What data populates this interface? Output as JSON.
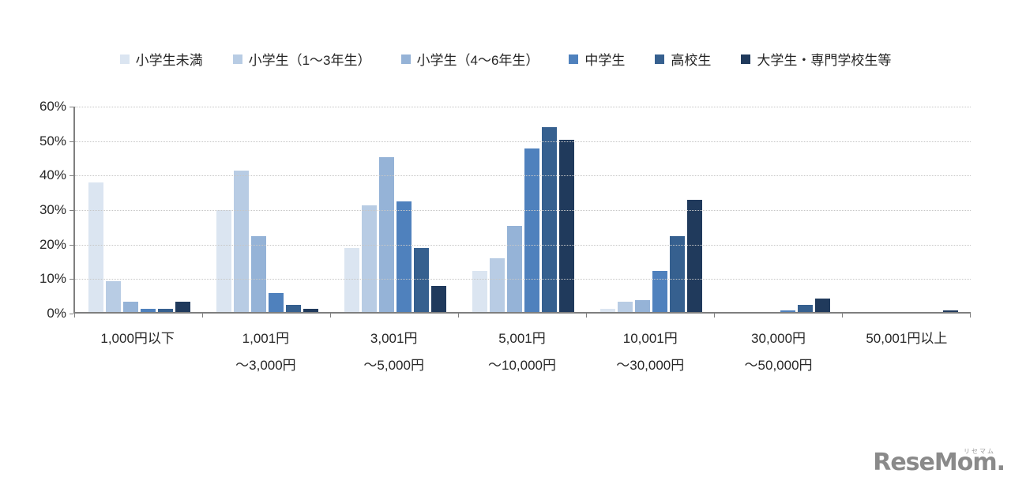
{
  "chart_data": {
    "type": "bar",
    "title": "",
    "xlabel": "",
    "ylabel": "",
    "grid": true,
    "legend_position": "top",
    "categories": [
      "1,000円以下",
      "1,001円〜3,000円",
      "3,001円〜5,000円",
      "5,001円〜10,000円",
      "10,001円〜30,000円",
      "30,000円〜50,000円",
      "50,001円以上"
    ],
    "category_label_lines": [
      [
        "1,000円以下",
        ""
      ],
      [
        "1,001円",
        "〜3,000円"
      ],
      [
        "3,001円",
        "〜5,000円"
      ],
      [
        "5,001円",
        "〜10,000円"
      ],
      [
        "10,001円",
        "〜30,000円"
      ],
      [
        "30,000円",
        "〜50,000円"
      ],
      [
        "50,001円以上",
        ""
      ]
    ],
    "series": [
      {
        "name": "小学生未満",
        "color": "#dbe5f1",
        "values": [
          37.5,
          29.5,
          18.5,
          12,
          1,
          0,
          0
        ]
      },
      {
        "name": "小学生（1〜3年生）",
        "color": "#b8cce4",
        "values": [
          9,
          41,
          31,
          15.5,
          3,
          0,
          0
        ]
      },
      {
        "name": "小学生（4〜6年生）",
        "color": "#95b3d7",
        "values": [
          3,
          22,
          45,
          25,
          3.5,
          0,
          0
        ]
      },
      {
        "name": "中学生",
        "color": "#4f81bd",
        "values": [
          1,
          5.5,
          32,
          47.5,
          12,
          0.5,
          0
        ]
      },
      {
        "name": "高校生",
        "color": "#36608f",
        "values": [
          1,
          2,
          18.5,
          53.5,
          22,
          2,
          0
        ]
      },
      {
        "name": "大学生・専門学校生等",
        "color": "#203a5c",
        "values": [
          3,
          1,
          7.5,
          50,
          32.5,
          4,
          0.5
        ]
      }
    ],
    "y_axis": {
      "min": 0,
      "max": 60,
      "step": 10,
      "unit": "%",
      "tick_labels": [
        "0%",
        "10%",
        "20%",
        "30%",
        "40%",
        "50%",
        "60%"
      ]
    }
  },
  "watermark": {
    "brand": "ReseMom.",
    "ruby": "リセマム"
  }
}
